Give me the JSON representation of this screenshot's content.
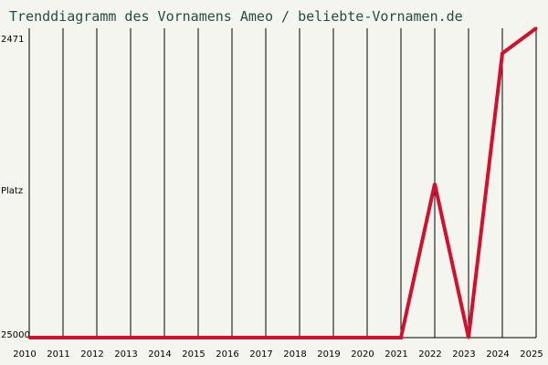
{
  "chart_data": {
    "type": "line",
    "title": "Trenddiagramm des Vornamens Ameo / beliebte-Vornamen.de",
    "ylabel": "Platz",
    "y_tick_top": "2471",
    "y_tick_bottom": "25000",
    "ylim": [
      25000,
      2471
    ],
    "y_reversed": true,
    "x": [
      "2010",
      "2011",
      "2012",
      "2013",
      "2014",
      "2015",
      "2016",
      "2017",
      "2018",
      "2019",
      "2020",
      "2021",
      "2022",
      "2023",
      "2024",
      "2025"
    ],
    "series": [
      {
        "values": [
          25000,
          25000,
          25000,
          25000,
          25000,
          25000,
          25000,
          25000,
          25000,
          25000,
          25000,
          25000,
          13800,
          25000,
          4300,
          2471
        ],
        "color": "#d0122f"
      }
    ],
    "grid": "vertical",
    "line_color": "#d0122f"
  }
}
